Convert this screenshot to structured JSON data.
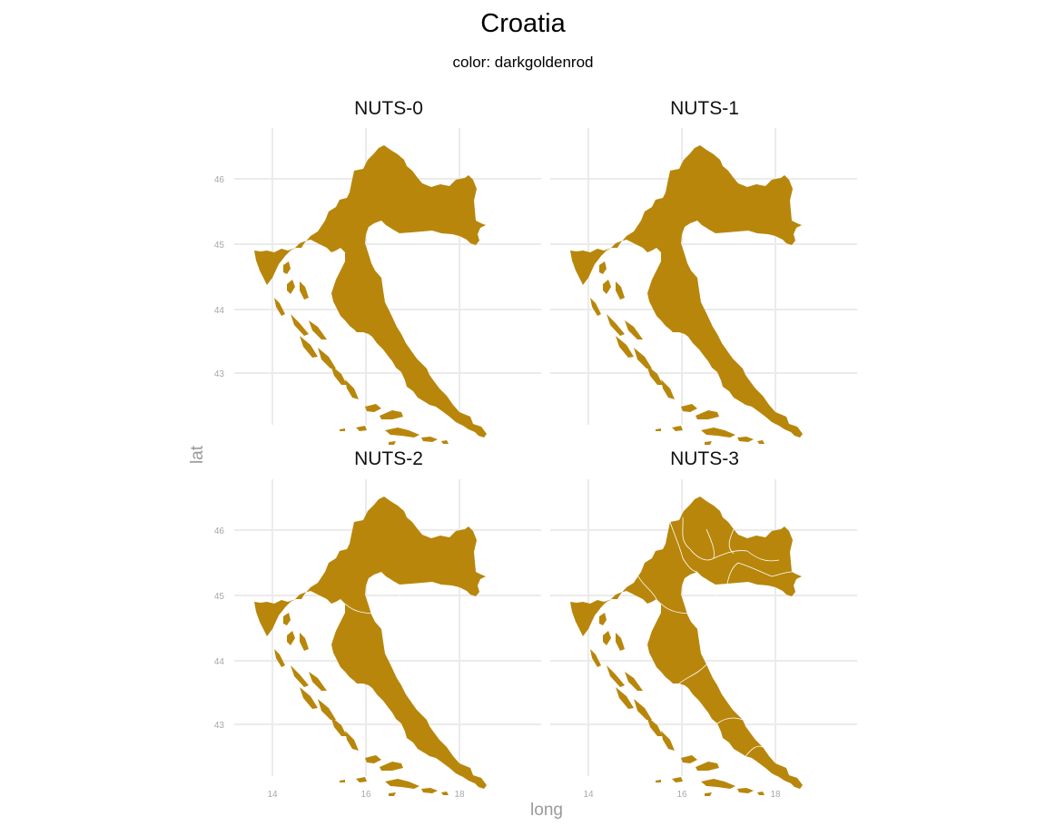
{
  "title": "Croatia",
  "subtitle": "color: darkgoldenrod",
  "facets": [
    {
      "label": "NUTS-0",
      "borders": "none"
    },
    {
      "label": "NUTS-1",
      "borders": "none"
    },
    {
      "label": "NUTS-2",
      "borders": "nuts2"
    },
    {
      "label": "NUTS-3",
      "borders": "nuts3"
    }
  ],
  "axes": {
    "xlabel": "long",
    "ylabel": "lat",
    "x_ticks": [
      "14",
      "16",
      "18"
    ],
    "y_ticks": [
      "46",
      "45",
      "44",
      "43"
    ],
    "xlim": [
      13.5,
      19.5
    ],
    "ylim": [
      42.35,
      46.6
    ]
  },
  "fill_color": "#B8860B",
  "border_color": "#ffffff",
  "grid_color": "#ebebeb"
}
